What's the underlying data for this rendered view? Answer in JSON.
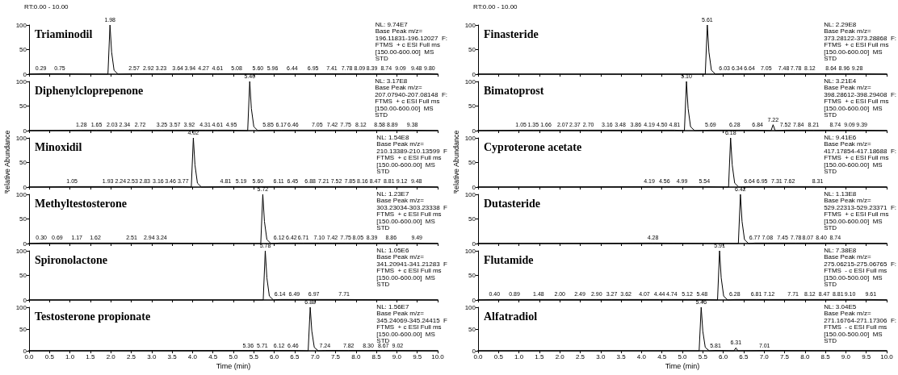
{
  "chart_data": [
    {
      "type": "line",
      "title": "Triaminodil",
      "color": "#000000",
      "xlim": [
        0,
        10
      ],
      "ylim": [
        0,
        100
      ],
      "yticks": [
        0,
        50,
        100
      ],
      "tick_labels": "y",
      "xticks": [
        0,
        0.5,
        1,
        1.5,
        2,
        2.5,
        3,
        3.5,
        4,
        4.5,
        5,
        5.5,
        6,
        6.5,
        7,
        7.5,
        8,
        8.5,
        9,
        9.5,
        10
      ],
      "x": [
        0,
        0.29,
        0.75,
        1.93,
        1.98,
        2.02,
        2.08,
        2.18,
        2.57,
        2.92,
        3.23,
        3.64,
        3.94,
        4.27,
        4.61,
        5.08,
        5.6,
        5.96,
        6.44,
        6.95,
        7.41,
        7.78,
        8.09,
        8.39,
        8.74,
        9.09,
        9.48,
        9.8,
        10
      ],
      "values": [
        0,
        1,
        1,
        0,
        100,
        45,
        8,
        0,
        1,
        1,
        1,
        1,
        1,
        1,
        1,
        1,
        1,
        1,
        1,
        1,
        1,
        1,
        1,
        1,
        1,
        1,
        1,
        1,
        0
      ],
      "annotations": [
        "RT:0.00 - 10.00",
        "NL: 9.74E7\nBase Peak m/z=\n196.11831-196.12027  F:\nFTMS  + c ESI Full ms\n[150.00-600.00]  MS\nSTD",
        {
          "text": "1.98",
          "x": 1.98,
          "y": 100
        },
        {
          "text": "0.29",
          "x": 0.29,
          "y": 1
        },
        {
          "text": "0.75",
          "x": 0.75,
          "y": 1
        },
        {
          "text": "2.57",
          "x": 2.57,
          "y": 1
        },
        {
          "text": "2.92",
          "x": 2.92,
          "y": 1
        },
        {
          "text": "3.23",
          "x": 3.23,
          "y": 1
        },
        {
          "text": "3.64",
          "x": 3.64,
          "y": 1
        },
        {
          "text": "3.94",
          "x": 3.94,
          "y": 1
        },
        {
          "text": "4.27",
          "x": 4.27,
          "y": 1
        },
        {
          "text": "4.61",
          "x": 4.61,
          "y": 1
        },
        {
          "text": "5.08",
          "x": 5.08,
          "y": 1
        },
        {
          "text": "5.60",
          "x": 5.6,
          "y": 1
        },
        {
          "text": "5.96",
          "x": 5.96,
          "y": 1
        },
        {
          "text": "6.44",
          "x": 6.44,
          "y": 1
        },
        {
          "text": "6.95",
          "x": 6.95,
          "y": 1
        },
        {
          "text": "7.41",
          "x": 7.41,
          "y": 1
        },
        {
          "text": "7.78",
          "x": 7.78,
          "y": 1
        },
        {
          "text": "8.09",
          "x": 8.09,
          "y": 1
        },
        {
          "text": "8.39",
          "x": 8.39,
          "y": 1
        },
        {
          "text": "8.74",
          "x": 8.74,
          "y": 1
        },
        {
          "text": "9.09",
          "x": 9.09,
          "y": 1
        },
        {
          "text": "9.48",
          "x": 9.48,
          "y": 1
        },
        {
          "text": "9.80",
          "x": 9.8,
          "y": 1
        }
      ]
    },
    {
      "type": "line",
      "title": "Diphenylcloprepenone",
      "color": "#000000",
      "xlim": [
        0,
        10
      ],
      "ylim": [
        0,
        100
      ],
      "yticks": [
        0,
        50,
        100
      ],
      "tick_labels": "y",
      "xticks": [
        0,
        0.5,
        1,
        1.5,
        2,
        2.5,
        3,
        3.5,
        4,
        4.5,
        5,
        5.5,
        6,
        6.5,
        7,
        7.5,
        8,
        8.5,
        9,
        9.5,
        10
      ],
      "x": [
        0,
        1.28,
        1.65,
        2.03,
        2.34,
        2.72,
        3.25,
        3.57,
        3.92,
        4.31,
        4.61,
        4.95,
        5.35,
        5.4,
        5.44,
        5.5,
        5.6,
        5.85,
        6.17,
        6.46,
        7.05,
        7.42,
        7.75,
        8.12,
        8.58,
        8.89,
        9.38,
        10
      ],
      "values": [
        0,
        1,
        1,
        1,
        1,
        1,
        1,
        1,
        1,
        1,
        1,
        1,
        0,
        100,
        45,
        8,
        0,
        1,
        1,
        1,
        1,
        1,
        1,
        1,
        1,
        1,
        1,
        0
      ],
      "annotations": [
        "NL: 3.17E8\nBase Peak m/z=\n207.07940-207.08148  F:\nFTMS  + c ESI Full ms\n[150.00-600.00]  MS\nSTD",
        {
          "text": "5.40",
          "x": 5.4,
          "y": 100
        },
        {
          "text": "1.28",
          "x": 1.28,
          "y": 1
        },
        {
          "text": "1.65",
          "x": 1.65,
          "y": 1
        },
        {
          "text": "2.03",
          "x": 2.03,
          "y": 1
        },
        {
          "text": "2.34",
          "x": 2.34,
          "y": 1
        },
        {
          "text": "2.72",
          "x": 2.72,
          "y": 1
        },
        {
          "text": "3.25",
          "x": 3.25,
          "y": 1
        },
        {
          "text": "3.57",
          "x": 3.57,
          "y": 1
        },
        {
          "text": "3.92",
          "x": 3.92,
          "y": 1
        },
        {
          "text": "4.31",
          "x": 4.31,
          "y": 1
        },
        {
          "text": "4.61",
          "x": 4.61,
          "y": 1
        },
        {
          "text": "4.95",
          "x": 4.95,
          "y": 1
        },
        {
          "text": "5.85",
          "x": 5.85,
          "y": 1
        },
        {
          "text": "6.17",
          "x": 6.17,
          "y": 1
        },
        {
          "text": "6.46",
          "x": 6.46,
          "y": 1
        },
        {
          "text": "7.05",
          "x": 7.05,
          "y": 1
        },
        {
          "text": "7.42",
          "x": 7.42,
          "y": 1
        },
        {
          "text": "7.75",
          "x": 7.75,
          "y": 1
        },
        {
          "text": "8.12",
          "x": 8.12,
          "y": 1
        },
        {
          "text": "8.58",
          "x": 8.58,
          "y": 1
        },
        {
          "text": "8.89",
          "x": 8.89,
          "y": 1
        },
        {
          "text": "9.38",
          "x": 9.38,
          "y": 1
        }
      ]
    },
    {
      "type": "line",
      "title": "Minoxidil",
      "ylabel": "Relative Abundance",
      "color": "#000000",
      "xlim": [
        0,
        10
      ],
      "ylim": [
        0,
        100
      ],
      "yticks": [
        0,
        50,
        100
      ],
      "tick_labels": "y",
      "xticks": [
        0,
        0.5,
        1,
        1.5,
        2,
        2.5,
        3,
        3.5,
        4,
        4.5,
        5,
        5.5,
        6,
        6.5,
        7,
        7.5,
        8,
        8.5,
        9,
        9.5,
        10
      ],
      "x": [
        0,
        1.05,
        1.93,
        2.24,
        2.53,
        2.83,
        3.16,
        3.46,
        3.77,
        3.97,
        4.02,
        4.06,
        4.12,
        4.22,
        4.81,
        5.19,
        5.6,
        6.11,
        6.45,
        6.88,
        7.21,
        7.52,
        7.85,
        8.16,
        8.47,
        8.81,
        9.12,
        9.48,
        10
      ],
      "values": [
        0,
        1,
        1,
        1,
        1,
        1,
        1,
        1,
        1,
        0,
        100,
        45,
        8,
        0,
        1,
        1,
        1,
        1,
        1,
        1,
        1,
        1,
        1,
        1,
        1,
        1,
        1,
        1,
        0
      ],
      "annotations": [
        "NL: 1.54E8\nBase Peak m/z=\n210.13389-210.13599  F\nFTMS  + c ESI Full ms\n[150.00-600.00]  MS\nSTD",
        {
          "text": "4.02",
          "x": 4.02,
          "y": 100
        },
        {
          "text": "1.05",
          "x": 1.05,
          "y": 1
        },
        {
          "text": "1.93",
          "x": 1.93,
          "y": 1
        },
        {
          "text": "2.24",
          "x": 2.24,
          "y": 1
        },
        {
          "text": "2.53",
          "x": 2.53,
          "y": 1
        },
        {
          "text": "2.83",
          "x": 2.83,
          "y": 1
        },
        {
          "text": "3.16",
          "x": 3.16,
          "y": 1
        },
        {
          "text": "3.46",
          "x": 3.46,
          "y": 1
        },
        {
          "text": "3.77",
          "x": 3.77,
          "y": 1
        },
        {
          "text": "4.81",
          "x": 4.81,
          "y": 1
        },
        {
          "text": "5.19",
          "x": 5.19,
          "y": 1
        },
        {
          "text": "5.60",
          "x": 5.6,
          "y": 1
        },
        {
          "text": "6.11",
          "x": 6.11,
          "y": 1
        },
        {
          "text": "6.45",
          "x": 6.45,
          "y": 1
        },
        {
          "text": "6.88",
          "x": 6.88,
          "y": 1
        },
        {
          "text": "7.21",
          "x": 7.21,
          "y": 1
        },
        {
          "text": "7.52",
          "x": 7.52,
          "y": 1
        },
        {
          "text": "7.85",
          "x": 7.85,
          "y": 1
        },
        {
          "text": "8.16",
          "x": 8.16,
          "y": 1
        },
        {
          "text": "8.47",
          "x": 8.47,
          "y": 1
        },
        {
          "text": "8.81",
          "x": 8.81,
          "y": 1
        },
        {
          "text": "9.12",
          "x": 9.12,
          "y": 1
        },
        {
          "text": "9.48",
          "x": 9.48,
          "y": 1
        }
      ]
    },
    {
      "type": "line",
      "title": "Methyltestosterone",
      "color": "#000000",
      "xlim": [
        0,
        10
      ],
      "ylim": [
        0,
        100
      ],
      "yticks": [
        0,
        50,
        100
      ],
      "tick_labels": "y",
      "xticks": [
        0,
        0.5,
        1,
        1.5,
        2,
        2.5,
        3,
        3.5,
        4,
        4.5,
        5,
        5.5,
        6,
        6.5,
        7,
        7.5,
        8,
        8.5,
        9,
        9.5,
        10
      ],
      "x": [
        0,
        0.3,
        0.69,
        1.17,
        1.62,
        2.51,
        2.94,
        3.24,
        5.67,
        5.72,
        5.76,
        5.82,
        5.92,
        6.12,
        6.42,
        6.71,
        7.1,
        7.42,
        7.75,
        8.05,
        8.39,
        8.86,
        9.49,
        10
      ],
      "values": [
        0,
        1,
        1,
        1,
        1,
        1,
        1,
        1,
        0,
        100,
        45,
        8,
        0,
        1,
        1,
        1,
        1,
        1,
        1,
        1,
        1,
        1,
        1,
        0
      ],
      "annotations": [
        "NL: 1.23E7\nBase Peak m/z=\n303.23034-303.23338  F\nFTMS  + c ESI Full ms\n[150.00-600.00]  MS\nSTD",
        {
          "text": "5.72",
          "x": 5.72,
          "y": 100
        },
        {
          "text": "0.30",
          "x": 0.3,
          "y": 1
        },
        {
          "text": "0.69",
          "x": 0.69,
          "y": 1
        },
        {
          "text": "1.17",
          "x": 1.17,
          "y": 1
        },
        {
          "text": "1.62",
          "x": 1.62,
          "y": 1
        },
        {
          "text": "2.51",
          "x": 2.51,
          "y": 1
        },
        {
          "text": "2.94",
          "x": 2.94,
          "y": 1
        },
        {
          "text": "3.24",
          "x": 3.24,
          "y": 1
        },
        {
          "text": "6.12",
          "x": 6.12,
          "y": 1
        },
        {
          "text": "6.42",
          "x": 6.42,
          "y": 1
        },
        {
          "text": "6.71",
          "x": 6.71,
          "y": 1
        },
        {
          "text": "7.10",
          "x": 7.1,
          "y": 1
        },
        {
          "text": "7.42",
          "x": 7.42,
          "y": 1
        },
        {
          "text": "7.75",
          "x": 7.75,
          "y": 1
        },
        {
          "text": "8.05",
          "x": 8.05,
          "y": 1
        },
        {
          "text": "8.39",
          "x": 8.39,
          "y": 1
        },
        {
          "text": "8.86",
          "x": 8.86,
          "y": 1
        },
        {
          "text": "9.49",
          "x": 9.49,
          "y": 1
        }
      ]
    },
    {
      "type": "line",
      "title": "Spironolactone",
      "color": "#000000",
      "xlim": [
        0,
        10
      ],
      "ylim": [
        0,
        100
      ],
      "yticks": [
        0,
        50,
        100
      ],
      "tick_labels": "y",
      "xticks": [
        0,
        0.5,
        1,
        1.5,
        2,
        2.5,
        3,
        3.5,
        4,
        4.5,
        5,
        5.5,
        6,
        6.5,
        7,
        7.5,
        8,
        8.5,
        9,
        9.5,
        10
      ],
      "x": [
        0,
        5.73,
        5.78,
        5.82,
        5.88,
        5.98,
        6.14,
        6.49,
        6.97,
        7.71,
        10
      ],
      "values": [
        0,
        0,
        100,
        45,
        8,
        0,
        1,
        1,
        1,
        1,
        0
      ],
      "annotations": [
        "NL: 1.05E6\nBase Peak m/z=\n341.20941-341.21283  F\nFTMS  + c ESI Full ms\n[150.00-600.00]  MS\nSTD",
        {
          "text": "5.78",
          "x": 5.78,
          "y": 100
        },
        {
          "text": "6.14",
          "x": 6.14,
          "y": 1
        },
        {
          "text": "6.49",
          "x": 6.49,
          "y": 1
        },
        {
          "text": "6.97",
          "x": 6.97,
          "y": 1
        },
        {
          "text": "7.71",
          "x": 7.71,
          "y": 1
        }
      ]
    },
    {
      "type": "line",
      "title": "Testosterone propionate",
      "xlabel": "Time (min)",
      "color": "#000000",
      "xlim": [
        0,
        10
      ],
      "ylim": [
        0,
        100
      ],
      "yticks": [
        0,
        50,
        100
      ],
      "xticks": [
        {
          "value": 0,
          "label": "0.0"
        },
        0.5,
        {
          "value": 1,
          "label": "1.0"
        },
        1.5,
        {
          "value": 2,
          "label": "2.0"
        },
        2.5,
        {
          "value": 3,
          "label": "3.0"
        },
        3.5,
        {
          "value": 4,
          "label": "4.0"
        },
        4.5,
        {
          "value": 5,
          "label": "5.0"
        },
        5.5,
        {
          "value": 6,
          "label": "6.0"
        },
        6.5,
        {
          "value": 7,
          "label": "7.0"
        },
        7.5,
        {
          "value": 8,
          "label": "8.0"
        },
        8.5,
        {
          "value": 9,
          "label": "9.0"
        },
        9.5,
        {
          "value": 10,
          "label": "10.0"
        }
      ],
      "x": [
        0,
        5.36,
        5.71,
        6.12,
        6.46,
        6.83,
        6.88,
        6.92,
        6.98,
        7.08,
        7.24,
        7.82,
        8.3,
        8.67,
        9.02,
        10
      ],
      "values": [
        0,
        1,
        1,
        1,
        1,
        0,
        100,
        45,
        8,
        0,
        1,
        1,
        1,
        1,
        1,
        0
      ],
      "annotations": [
        "NL: 1.56E7\nBase Peak m/z=\n345.24069-345.24415  F\nFTMS  + c ESI Full ms\n[150.00-600.00]  MS\nSTD",
        {
          "text": "6.88",
          "x": 6.88,
          "y": 100
        },
        {
          "text": "5.36",
          "x": 5.36,
          "y": 1
        },
        {
          "text": "5.71",
          "x": 5.71,
          "y": 1
        },
        {
          "text": "6.12",
          "x": 6.12,
          "y": 1
        },
        {
          "text": "6.46",
          "x": 6.46,
          "y": 1
        },
        {
          "text": "7.24",
          "x": 7.24,
          "y": 1
        },
        {
          "text": "7.82",
          "x": 7.82,
          "y": 1
        },
        {
          "text": "8.30",
          "x": 8.3,
          "y": 1
        },
        {
          "text": "8.67",
          "x": 8.67,
          "y": 1
        },
        {
          "text": "9.02",
          "x": 9.02,
          "y": 1
        }
      ]
    },
    {
      "type": "line",
      "title": "Finasteride",
      "color": "#000000",
      "xlim": [
        0,
        10
      ],
      "ylim": [
        0,
        100
      ],
      "yticks": [
        0,
        50,
        100
      ],
      "tick_labels": "y",
      "xticks": [
        0,
        0.5,
        1,
        1.5,
        2,
        2.5,
        3,
        3.5,
        4,
        4.5,
        5,
        5.5,
        6,
        6.5,
        7,
        7.5,
        8,
        8.5,
        9,
        9.5,
        10
      ],
      "x": [
        0,
        5.56,
        5.61,
        5.65,
        5.71,
        5.81,
        6.03,
        6.34,
        6.64,
        7.05,
        7.48,
        7.78,
        8.12,
        8.64,
        8.96,
        9.28,
        10
      ],
      "values": [
        0,
        0,
        100,
        45,
        8,
        0,
        1,
        1,
        1,
        1,
        1,
        1,
        1,
        1,
        1,
        1,
        0
      ],
      "annotations": [
        "RT:0.00 - 10.00",
        "NL: 2.29E8\nBase Peak m/z=\n373.28122-373.28868  F:\nFTMS  + c ESI Full ms\n[150.00-600.00]  MS\nSTD",
        {
          "text": "5.61",
          "x": 5.61,
          "y": 100
        },
        {
          "text": "6.03",
          "x": 6.03,
          "y": 1
        },
        {
          "text": "6.34",
          "x": 6.34,
          "y": 1
        },
        {
          "text": "6.64",
          "x": 6.64,
          "y": 1
        },
        {
          "text": "7.05",
          "x": 7.05,
          "y": 1
        },
        {
          "text": "7.48",
          "x": 7.48,
          "y": 1
        },
        {
          "text": "7.78",
          "x": 7.78,
          "y": 1
        },
        {
          "text": "8.12",
          "x": 8.12,
          "y": 1
        },
        {
          "text": "8.64",
          "x": 8.64,
          "y": 1
        },
        {
          "text": "8.96",
          "x": 8.96,
          "y": 1
        },
        {
          "text": "9.28",
          "x": 9.28,
          "y": 1
        }
      ]
    },
    {
      "type": "line",
      "title": "Bimatoprost",
      "color": "#000000",
      "xlim": [
        0,
        10
      ],
      "ylim": [
        0,
        100
      ],
      "yticks": [
        0,
        50,
        100
      ],
      "tick_labels": "y",
      "xticks": [
        0,
        0.5,
        1,
        1.5,
        2,
        2.5,
        3,
        3.5,
        4,
        4.5,
        5,
        5.5,
        6,
        6.5,
        7,
        7.5,
        8,
        8.5,
        9,
        9.5,
        10
      ],
      "x": [
        0,
        1.05,
        1.35,
        1.66,
        2.07,
        2.37,
        2.7,
        3.16,
        3.48,
        3.86,
        4.19,
        4.5,
        4.81,
        5.05,
        5.1,
        5.14,
        5.2,
        5.3,
        5.69,
        6.28,
        6.84,
        7.17,
        7.22,
        7.27,
        7.52,
        7.84,
        8.21,
        8.74,
        9.09,
        9.39,
        10
      ],
      "values": [
        0,
        1,
        1,
        1,
        1,
        1,
        1,
        1,
        1,
        1,
        1,
        1,
        1,
        0,
        100,
        45,
        8,
        0,
        1,
        1,
        1,
        0,
        12,
        0,
        1,
        1,
        1,
        1,
        1,
        1,
        0
      ],
      "annotations": [
        "NL: 3.21E4\nBase Peak m/z=\n398.28612-398.29408  F:\nFTMS  + c ESI Full ms\n[150.00-600.00]  MS\nSTD",
        {
          "text": "5.10",
          "x": 5.1,
          "y": 100
        },
        {
          "text": "7.22",
          "x": 7.22,
          "y": 12
        },
        {
          "text": "1.05",
          "x": 1.05,
          "y": 1
        },
        {
          "text": "1.35",
          "x": 1.35,
          "y": 1
        },
        {
          "text": "1.66",
          "x": 1.66,
          "y": 1
        },
        {
          "text": "2.07",
          "x": 2.07,
          "y": 1
        },
        {
          "text": "2.37",
          "x": 2.37,
          "y": 1
        },
        {
          "text": "2.70",
          "x": 2.7,
          "y": 1
        },
        {
          "text": "3.16",
          "x": 3.16,
          "y": 1
        },
        {
          "text": "3.48",
          "x": 3.48,
          "y": 1
        },
        {
          "text": "3.86",
          "x": 3.86,
          "y": 1
        },
        {
          "text": "4.19",
          "x": 4.19,
          "y": 1
        },
        {
          "text": "4.50",
          "x": 4.5,
          "y": 1
        },
        {
          "text": "4.81",
          "x": 4.81,
          "y": 1
        },
        {
          "text": "5.69",
          "x": 5.69,
          "y": 1
        },
        {
          "text": "6.28",
          "x": 6.28,
          "y": 1
        },
        {
          "text": "6.84",
          "x": 6.84,
          "y": 1
        },
        {
          "text": "7.52",
          "x": 7.52,
          "y": 1
        },
        {
          "text": "7.84",
          "x": 7.84,
          "y": 1
        },
        {
          "text": "8.21",
          "x": 8.21,
          "y": 1
        },
        {
          "text": "8.74",
          "x": 8.74,
          "y": 1
        },
        {
          "text": "9.09",
          "x": 9.09,
          "y": 1
        },
        {
          "text": "9.39",
          "x": 9.39,
          "y": 1
        }
      ]
    },
    {
      "type": "line",
      "title": "Cyproterone acetate",
      "ylabel": "Relative Abundance",
      "color": "#000000",
      "xlim": [
        0,
        10
      ],
      "ylim": [
        0,
        100
      ],
      "yticks": [
        0,
        50,
        100
      ],
      "tick_labels": "y",
      "xticks": [
        0,
        0.5,
        1,
        1.5,
        2,
        2.5,
        3,
        3.5,
        4,
        4.5,
        5,
        5.5,
        6,
        6.5,
        7,
        7.5,
        8,
        8.5,
        9,
        9.5,
        10
      ],
      "x": [
        0,
        4.19,
        4.56,
        4.99,
        5.54,
        6.13,
        6.18,
        6.22,
        6.28,
        6.38,
        6.64,
        6.95,
        7.31,
        7.62,
        8.31,
        10
      ],
      "values": [
        0,
        1,
        1,
        1,
        1,
        0,
        100,
        45,
        8,
        0,
        1,
        1,
        1,
        1,
        1,
        0
      ],
      "annotations": [
        "NL: 9.41E6\nBase Peak m/z=\n417.17854-417.18688  F:\nFTMS  + c ESI Full ms\n[150.00-600.00]  MS\nSTD",
        {
          "text": "6.18",
          "x": 6.18,
          "y": 100
        },
        {
          "text": "4.19",
          "x": 4.19,
          "y": 1
        },
        {
          "text": "4.56",
          "x": 4.56,
          "y": 1
        },
        {
          "text": "4.99",
          "x": 4.99,
          "y": 1
        },
        {
          "text": "5.54",
          "x": 5.54,
          "y": 1
        },
        {
          "text": "6.64",
          "x": 6.64,
          "y": 1
        },
        {
          "text": "6.95",
          "x": 6.95,
          "y": 1
        },
        {
          "text": "7.31",
          "x": 7.31,
          "y": 1
        },
        {
          "text": "7.62",
          "x": 7.62,
          "y": 1
        },
        {
          "text": "8.31",
          "x": 8.31,
          "y": 1
        }
      ]
    },
    {
      "type": "line",
      "title": "Dutasteride",
      "color": "#000000",
      "xlim": [
        0,
        10
      ],
      "ylim": [
        0,
        100
      ],
      "yticks": [
        0,
        50,
        100
      ],
      "tick_labels": "y",
      "xticks": [
        0,
        0.5,
        1,
        1.5,
        2,
        2.5,
        3,
        3.5,
        4,
        4.5,
        5,
        5.5,
        6,
        6.5,
        7,
        7.5,
        8,
        8.5,
        9,
        9.5,
        10
      ],
      "x": [
        0,
        4.28,
        6.37,
        6.42,
        6.46,
        6.52,
        6.62,
        6.77,
        7.08,
        7.45,
        7.78,
        8.07,
        8.4,
        8.74,
        10
      ],
      "values": [
        0,
        1,
        0,
        100,
        45,
        8,
        0,
        1,
        1,
        1,
        1,
        1,
        1,
        1,
        0
      ],
      "annotations": [
        "NL: 1.13E8\nBase Peak m/z=\n529.22313-529.23371  F:\nFTMS  + c ESI Full ms\n[150.00-600.00]  MS\nSTD",
        {
          "text": "6.42",
          "x": 6.42,
          "y": 100
        },
        {
          "text": "4.28",
          "x": 4.28,
          "y": 1
        },
        {
          "text": "6.77",
          "x": 6.77,
          "y": 1
        },
        {
          "text": "7.08",
          "x": 7.08,
          "y": 1
        },
        {
          "text": "7.45",
          "x": 7.45,
          "y": 1
        },
        {
          "text": "7.78",
          "x": 7.78,
          "y": 1
        },
        {
          "text": "8.07",
          "x": 8.07,
          "y": 1
        },
        {
          "text": "8.40",
          "x": 8.4,
          "y": 1
        },
        {
          "text": "8.74",
          "x": 8.74,
          "y": 1
        }
      ]
    },
    {
      "type": "line",
      "title": "Flutamide",
      "color": "#000000",
      "xlim": [
        0,
        10
      ],
      "ylim": [
        0,
        100
      ],
      "yticks": [
        0,
        50,
        100
      ],
      "tick_labels": "y",
      "xticks": [
        0,
        0.5,
        1,
        1.5,
        2,
        2.5,
        3,
        3.5,
        4,
        4.5,
        5,
        5.5,
        6,
        6.5,
        7,
        7.5,
        8,
        8.5,
        9,
        9.5,
        10
      ],
      "x": [
        0,
        0.4,
        0.89,
        1.48,
        2,
        2.49,
        2.9,
        3.27,
        3.62,
        4.07,
        4.44,
        4.74,
        5.12,
        5.48,
        5.86,
        5.91,
        5.95,
        6.01,
        6.11,
        6.28,
        6.81,
        7.12,
        7.71,
        8.12,
        8.47,
        8.81,
        9.1,
        9.61,
        10
      ],
      "values": [
        0,
        1,
        1,
        1,
        1,
        1,
        1,
        1,
        1,
        1,
        1,
        1,
        1,
        1,
        0,
        100,
        45,
        8,
        0,
        1,
        1,
        1,
        1,
        1,
        1,
        1,
        1,
        1,
        0
      ],
      "annotations": [
        "NL: 7.38E8\nBase Peak m/z=\n275.06215-275.06765  F:\nFTMS  - c ESI Full ms\n[150.00-500.00]  MS\nSTD",
        {
          "text": "5.91",
          "x": 5.91,
          "y": 100
        },
        {
          "text": "0.40",
          "x": 0.4,
          "y": 1
        },
        {
          "text": "0.89",
          "x": 0.89,
          "y": 1
        },
        {
          "text": "1.48",
          "x": 1.48,
          "y": 1
        },
        {
          "text": "2.00",
          "x": 2,
          "y": 1
        },
        {
          "text": "2.49",
          "x": 2.49,
          "y": 1
        },
        {
          "text": "2.90",
          "x": 2.9,
          "y": 1
        },
        {
          "text": "3.27",
          "x": 3.27,
          "y": 1
        },
        {
          "text": "3.62",
          "x": 3.62,
          "y": 1
        },
        {
          "text": "4.07",
          "x": 4.07,
          "y": 1
        },
        {
          "text": "4.44",
          "x": 4.44,
          "y": 1
        },
        {
          "text": "4.74",
          "x": 4.74,
          "y": 1
        },
        {
          "text": "5.12",
          "x": 5.12,
          "y": 1
        },
        {
          "text": "5.48",
          "x": 5.48,
          "y": 1
        },
        {
          "text": "6.28",
          "x": 6.28,
          "y": 1
        },
        {
          "text": "6.81",
          "x": 6.81,
          "y": 1
        },
        {
          "text": "7.12",
          "x": 7.12,
          "y": 1
        },
        {
          "text": "7.71",
          "x": 7.71,
          "y": 1
        },
        {
          "text": "8.12",
          "x": 8.12,
          "y": 1
        },
        {
          "text": "8.47",
          "x": 8.47,
          "y": 1
        },
        {
          "text": "8.81",
          "x": 8.81,
          "y": 1
        },
        {
          "text": "9.10",
          "x": 9.1,
          "y": 1
        },
        {
          "text": "9.61",
          "x": 9.61,
          "y": 1
        }
      ]
    },
    {
      "type": "line",
      "title": "Alfatradiol",
      "xlabel": "Time (min)",
      "color": "#000000",
      "xlim": [
        0,
        10
      ],
      "ylim": [
        0,
        100
      ],
      "yticks": [
        0,
        50,
        100
      ],
      "xticks": [
        {
          "value": 0,
          "label": "0.0"
        },
        0.5,
        {
          "value": 1,
          "label": "1.0"
        },
        1.5,
        {
          "value": 2,
          "label": "2.0"
        },
        2.5,
        {
          "value": 3,
          "label": "3.0"
        },
        3.5,
        {
          "value": 4,
          "label": "4.0"
        },
        4.5,
        {
          "value": 5,
          "label": "5.0"
        },
        5.5,
        {
          "value": 6,
          "label": "6.0"
        },
        6.5,
        {
          "value": 7,
          "label": "7.0"
        },
        7.5,
        {
          "value": 8,
          "label": "8.0"
        },
        8.5,
        {
          "value": 9,
          "label": "9.0"
        },
        9.5,
        {
          "value": 10,
          "label": "10.0"
        }
      ],
      "x": [
        0,
        5.41,
        5.46,
        5.5,
        5.56,
        5.66,
        5.81,
        6.26,
        6.31,
        6.36,
        7.01,
        10
      ],
      "values": [
        0,
        0,
        100,
        45,
        8,
        0,
        1,
        0,
        7,
        0,
        1,
        0
      ],
      "annotations": [
        "NL: 3.04E5\nBase Peak m/z=\n271.16764-271.17306  F:\nFTMS  - c ESI Full ms\n[150.00-500.00]  MS\nSTD",
        {
          "text": "5.46",
          "x": 5.46,
          "y": 100
        },
        {
          "text": "6.31",
          "x": 6.31,
          "y": 7
        },
        {
          "text": "5.81",
          "x": 5.81,
          "y": 1
        },
        {
          "text": "7.01",
          "x": 7.01,
          "y": 1
        }
      ]
    }
  ]
}
